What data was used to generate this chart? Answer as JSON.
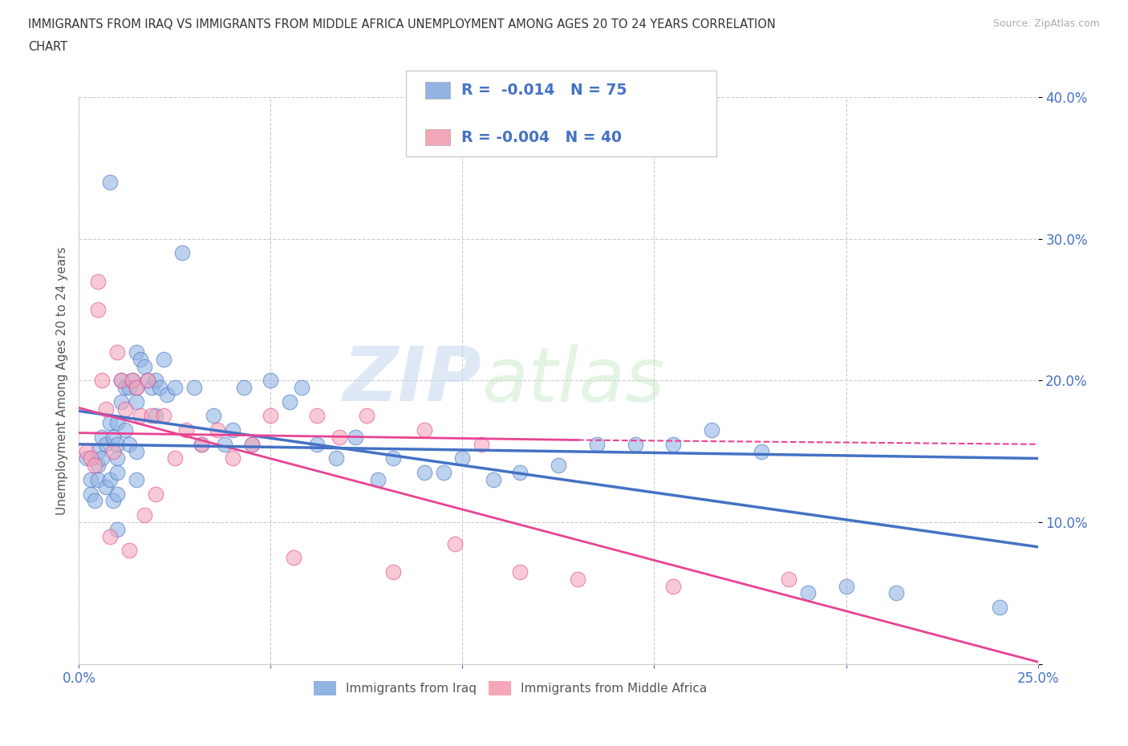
{
  "title_line1": "IMMIGRANTS FROM IRAQ VS IMMIGRANTS FROM MIDDLE AFRICA UNEMPLOYMENT AMONG AGES 20 TO 24 YEARS CORRELATION",
  "title_line2": "CHART",
  "source_text": "Source: ZipAtlas.com",
  "ylabel": "Unemployment Among Ages 20 to 24 years",
  "xlim": [
    0.0,
    0.25
  ],
  "ylim": [
    0.0,
    0.4
  ],
  "xticks": [
    0.0,
    0.05,
    0.1,
    0.15,
    0.2,
    0.25
  ],
  "yticks": [
    0.0,
    0.1,
    0.2,
    0.3,
    0.4
  ],
  "xtick_labels": [
    "0.0%",
    "",
    "",
    "",
    "",
    "25.0%"
  ],
  "ytick_labels_right": [
    "",
    "10.0%",
    "20.0%",
    "30.0%",
    "40.0%"
  ],
  "legend_iraq_label": "Immigrants from Iraq",
  "legend_africa_label": "Immigrants from Middle Africa",
  "legend_R_iraq": "R =  -0.014",
  "legend_N_iraq": "N = 75",
  "legend_R_africa": "R = -0.004",
  "legend_N_africa": "N = 40",
  "watermark_zip": "ZIP",
  "watermark_atlas": "atlas",
  "color_iraq": "#92b4e3",
  "color_africa": "#f4a7b9",
  "color_trend_iraq": "#4472c4",
  "color_trend_africa": "#e84393",
  "background_color": "#ffffff",
  "iraq_x": [
    0.002,
    0.003,
    0.003,
    0.004,
    0.005,
    0.005,
    0.005,
    0.006,
    0.006,
    0.007,
    0.007,
    0.008,
    0.008,
    0.008,
    0.009,
    0.009,
    0.01,
    0.01,
    0.01,
    0.01,
    0.01,
    0.01,
    0.011,
    0.011,
    0.012,
    0.012,
    0.013,
    0.013,
    0.014,
    0.015,
    0.015,
    0.015,
    0.015,
    0.015,
    0.016,
    0.017,
    0.018,
    0.019,
    0.02,
    0.02,
    0.021,
    0.022,
    0.023,
    0.025,
    0.027,
    0.03,
    0.032,
    0.035,
    0.038,
    0.04,
    0.043,
    0.045,
    0.05,
    0.055,
    0.058,
    0.062,
    0.067,
    0.072,
    0.078,
    0.082,
    0.09,
    0.095,
    0.1,
    0.108,
    0.115,
    0.125,
    0.135,
    0.145,
    0.155,
    0.165,
    0.178,
    0.19,
    0.2,
    0.213,
    0.24
  ],
  "iraq_y": [
    0.145,
    0.13,
    0.12,
    0.115,
    0.15,
    0.14,
    0.13,
    0.16,
    0.145,
    0.155,
    0.125,
    0.17,
    0.34,
    0.13,
    0.16,
    0.115,
    0.17,
    0.155,
    0.145,
    0.135,
    0.12,
    0.095,
    0.2,
    0.185,
    0.195,
    0.165,
    0.195,
    0.155,
    0.2,
    0.22,
    0.195,
    0.185,
    0.15,
    0.13,
    0.215,
    0.21,
    0.2,
    0.195,
    0.2,
    0.175,
    0.195,
    0.215,
    0.19,
    0.195,
    0.29,
    0.195,
    0.155,
    0.175,
    0.155,
    0.165,
    0.195,
    0.155,
    0.2,
    0.185,
    0.195,
    0.155,
    0.145,
    0.16,
    0.13,
    0.145,
    0.135,
    0.135,
    0.145,
    0.13,
    0.135,
    0.14,
    0.155,
    0.155,
    0.155,
    0.165,
    0.15,
    0.05,
    0.055,
    0.05,
    0.04
  ],
  "africa_x": [
    0.002,
    0.003,
    0.004,
    0.005,
    0.005,
    0.006,
    0.007,
    0.008,
    0.009,
    0.01,
    0.011,
    0.012,
    0.013,
    0.014,
    0.015,
    0.016,
    0.017,
    0.018,
    0.019,
    0.02,
    0.022,
    0.025,
    0.028,
    0.032,
    0.036,
    0.04,
    0.045,
    0.05,
    0.056,
    0.062,
    0.068,
    0.075,
    0.082,
    0.09,
    0.098,
    0.105,
    0.115,
    0.13,
    0.155,
    0.185
  ],
  "africa_y": [
    0.15,
    0.145,
    0.14,
    0.27,
    0.25,
    0.2,
    0.18,
    0.09,
    0.15,
    0.22,
    0.2,
    0.18,
    0.08,
    0.2,
    0.195,
    0.175,
    0.105,
    0.2,
    0.175,
    0.12,
    0.175,
    0.145,
    0.165,
    0.155,
    0.165,
    0.145,
    0.155,
    0.175,
    0.075,
    0.175,
    0.16,
    0.175,
    0.065,
    0.165,
    0.085,
    0.155,
    0.065,
    0.06,
    0.055,
    0.06
  ]
}
